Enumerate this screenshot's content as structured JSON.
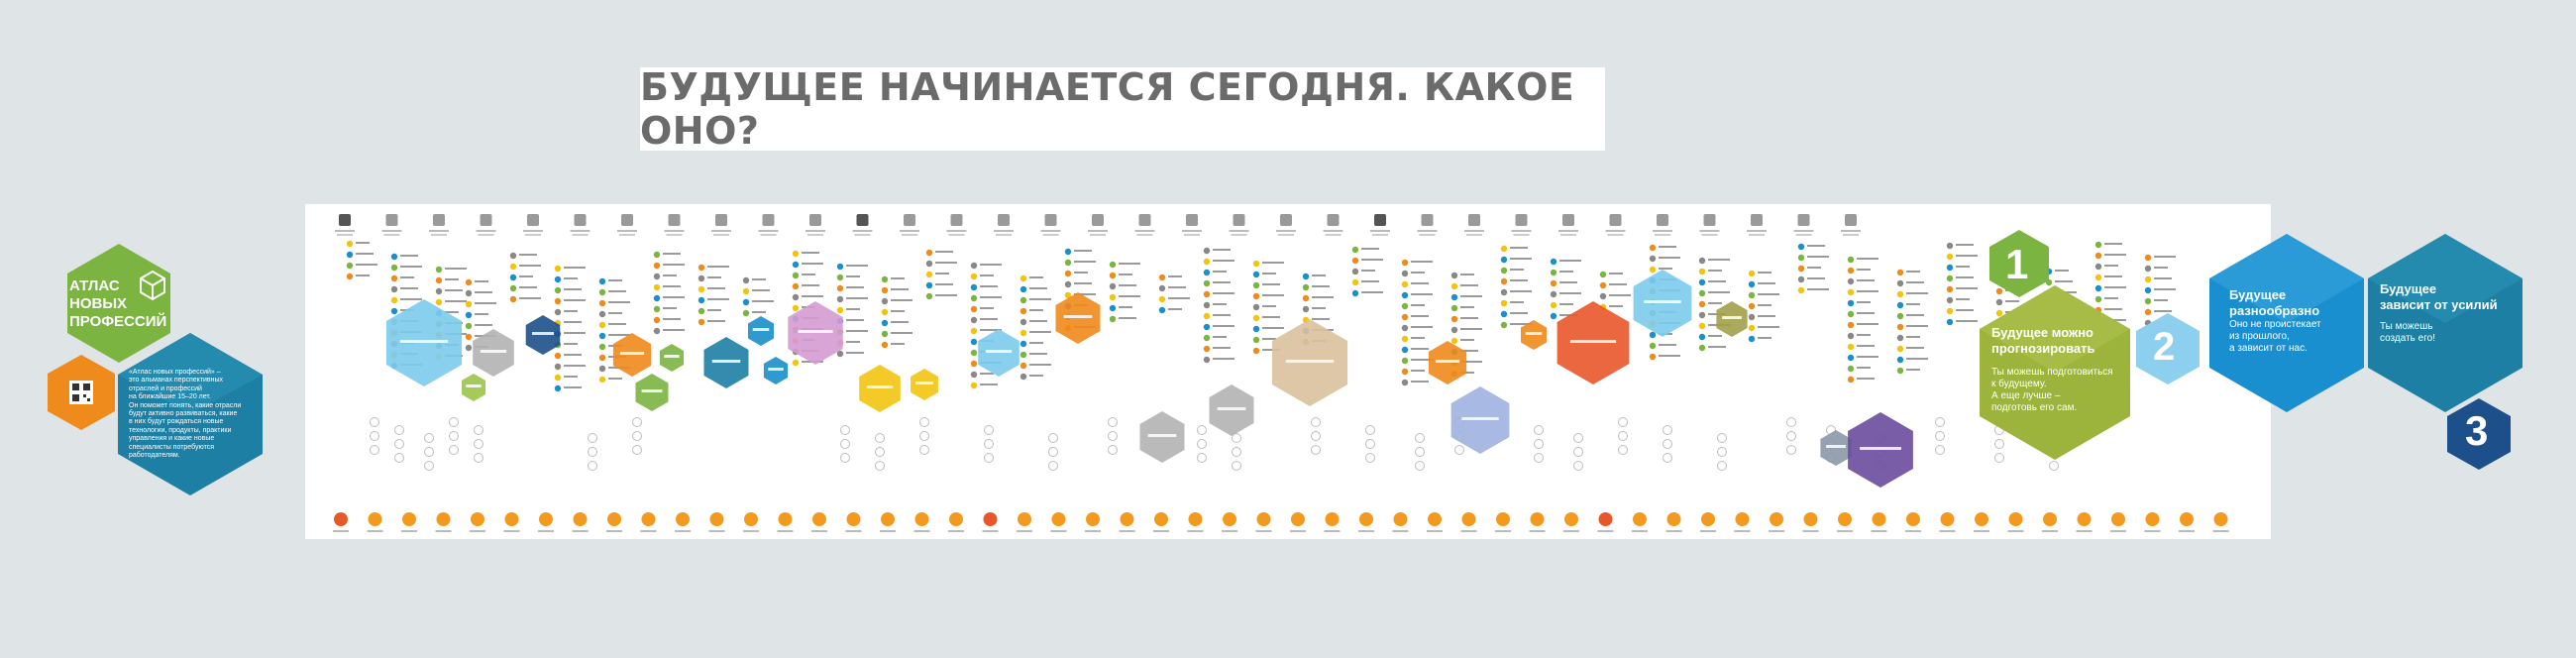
{
  "headline": "БУДУЩЕЕ НАЧИНАЕТСЯ  СЕГОДНЯ. КАКОЕ ОНО?",
  "atlas": {
    "logo_text": "АТЛАС\nНОВЫХ\nПРОФЕССИЙ",
    "description": "«Атлас новых профессий» –\nэто альманах перспективных\nотраслей и профессий\nна ближайшие 15–20 лет.\nОн поможет понять, какие отрасли\nбудут активно развиваться, какие\nв них будут рождаться новые\nтехнологии, продукты, практики\nуправления и какие новые\nспециалисты потребуются\nработодателям."
  },
  "principles": [
    {
      "number": "1",
      "title": "Будущее можно\nпрогнозировать",
      "body": "Ты можешь подготовиться\nк будущему.\nА еще лучше –\nподготовь его сам."
    },
    {
      "number": "2",
      "title": "Будущее\nразнообразно",
      "body": "Оно не проистекает\nиз прошлого,\nа зависит от нас."
    },
    {
      "number": "3",
      "title": "Будущее\nзависит от усилий",
      "body": "Ты можешь\nсоздать его!"
    }
  ],
  "colors": {
    "background": "#dfe5e7",
    "green": "#7cb441",
    "light_green": "#9cc34a",
    "blue": "#1a8fc9",
    "teal": "#1d7fa4",
    "light_blue": "#7ccbec",
    "navy": "#1d4f8a",
    "orange": "#ef8a1c",
    "yellow": "#f2c40f",
    "pink": "#d59bd1",
    "beige": "#d9c19c",
    "gray": "#b3b3b3",
    "red": "#e8572a",
    "violet": "#6a4b9c",
    "olive": "#a2a04a"
  }
}
